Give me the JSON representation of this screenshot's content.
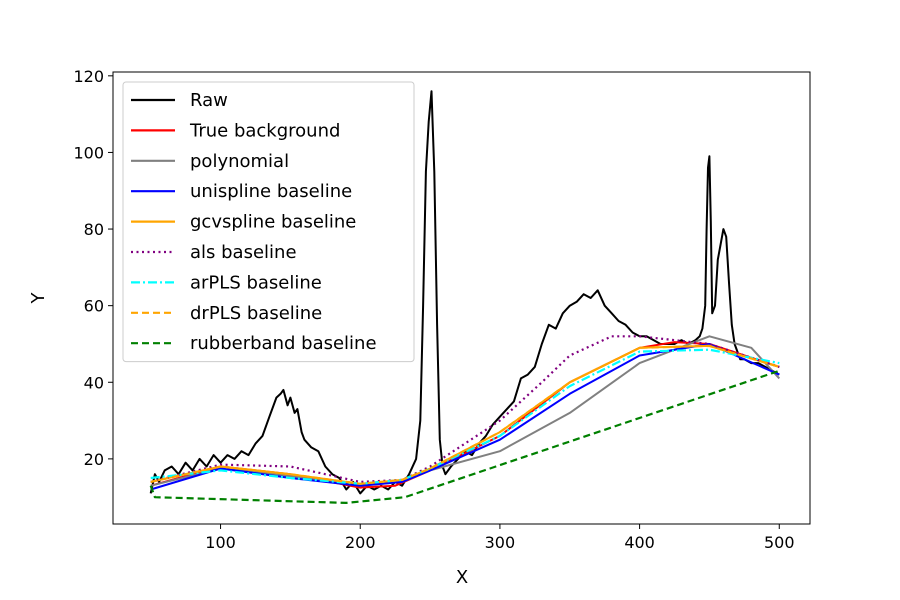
{
  "chart_data": {
    "type": "line",
    "xlabel": "X",
    "ylabel": "Y",
    "xlim": [
      23,
      522
    ],
    "ylim": [
      3,
      121
    ],
    "xticks": [
      100,
      200,
      300,
      400,
      500
    ],
    "yticks": [
      20,
      40,
      60,
      80,
      100,
      120
    ],
    "legend_position": "top-left",
    "series": [
      {
        "name": "Raw",
        "color": "#000000",
        "dash": "solid",
        "x": [
          50,
          53,
          56,
          60,
          65,
          70,
          75,
          80,
          85,
          90,
          95,
          100,
          105,
          110,
          115,
          120,
          125,
          130,
          135,
          140,
          143,
          145,
          148,
          150,
          153,
          155,
          158,
          160,
          165,
          170,
          175,
          180,
          185,
          190,
          195,
          200,
          205,
          210,
          215,
          220,
          225,
          230,
          235,
          240,
          243,
          245,
          247,
          249,
          250,
          251,
          253,
          255,
          257,
          259,
          261,
          265,
          270,
          275,
          280,
          285,
          290,
          295,
          300,
          305,
          310,
          315,
          320,
          325,
          330,
          335,
          340,
          345,
          350,
          355,
          360,
          365,
          370,
          375,
          380,
          385,
          390,
          395,
          400,
          405,
          410,
          415,
          420,
          425,
          430,
          435,
          440,
          443,
          445,
          447,
          448,
          449,
          450,
          451,
          452,
          454,
          456,
          458,
          460,
          462,
          464,
          466,
          468,
          470,
          472,
          475,
          480,
          485,
          490,
          495,
          500
        ],
        "y": [
          11,
          16,
          14,
          17,
          18,
          16,
          19,
          17,
          20,
          18,
          21,
          19,
          21,
          20,
          22,
          21,
          24,
          26,
          31,
          36,
          37,
          38,
          34,
          36,
          32,
          33,
          27,
          25,
          23,
          22,
          18,
          16,
          15,
          12,
          14,
          11,
          13,
          12,
          13,
          12,
          14,
          13,
          16,
          20,
          30,
          60,
          95,
          108,
          112,
          116,
          95,
          55,
          25,
          18,
          16,
          18,
          20,
          22,
          21,
          24,
          26,
          29,
          31,
          33,
          35,
          41,
          42,
          44,
          50,
          55,
          54,
          58,
          60,
          61,
          63,
          62,
          64,
          60,
          58,
          56,
          55,
          53,
          52,
          52,
          51,
          50,
          50,
          50,
          51,
          50,
          51,
          52,
          54,
          60,
          80,
          96,
          99,
          82,
          58,
          60,
          72,
          76,
          80,
          78,
          66,
          55,
          50,
          48,
          46,
          46,
          45,
          45,
          44,
          43,
          42
        ]
      },
      {
        "name": "True background",
        "color": "#ff0000",
        "dash": "solid",
        "x": [
          50,
          100,
          150,
          200,
          225,
          250,
          300,
          350,
          400,
          425,
          450,
          500
        ],
        "y": [
          13,
          18,
          16,
          12.5,
          13,
          17,
          26,
          40,
          49,
          50.5,
          50,
          44
        ]
      },
      {
        "name": "polynomial",
        "color": "#808080",
        "dash": "solid",
        "x": [
          50,
          100,
          150,
          200,
          230,
          250,
          300,
          350,
          400,
          450,
          480,
          500
        ],
        "y": [
          13,
          17.5,
          15.5,
          13,
          14,
          17,
          22,
          32,
          45,
          52,
          49,
          41
        ]
      },
      {
        "name": "unispline baseline",
        "color": "#0000ff",
        "dash": "solid",
        "x": [
          50,
          100,
          150,
          200,
          230,
          250,
          300,
          350,
          400,
          450,
          500
        ],
        "y": [
          12,
          17.5,
          15,
          13,
          14,
          17,
          25,
          37,
          47,
          50,
          42
        ]
      },
      {
        "name": "gcvspline baseline",
        "color": "#ffa500",
        "dash": "solid",
        "x": [
          50,
          100,
          150,
          200,
          230,
          250,
          300,
          350,
          400,
          450,
          500
        ],
        "y": [
          14,
          18,
          16,
          13.5,
          14.5,
          17.5,
          27,
          40,
          49,
          49.5,
          44
        ]
      },
      {
        "name": "als baseline",
        "color": "#800080",
        "dash": "dotted",
        "x": [
          50,
          100,
          150,
          200,
          230,
          250,
          300,
          330,
          350,
          380,
          400,
          450,
          500
        ],
        "y": [
          14,
          18.5,
          18,
          14,
          14.5,
          18,
          30,
          40,
          47,
          52,
          52,
          50,
          44
        ]
      },
      {
        "name": "arPLS baseline",
        "color": "#00ffff",
        "dash": "dashdot",
        "x": [
          50,
          100,
          150,
          200,
          230,
          250,
          300,
          350,
          400,
          450,
          500
        ],
        "y": [
          15,
          17,
          15,
          13.5,
          14.5,
          17.5,
          26,
          39,
          48,
          48.5,
          45
        ]
      },
      {
        "name": "drPLS baseline",
        "color": "#ffa500",
        "dash": "dashed",
        "x": [
          50,
          100,
          150,
          200,
          230,
          250,
          300,
          350,
          400,
          450,
          500
        ],
        "y": [
          14,
          18,
          16,
          13.5,
          14.5,
          17.5,
          27,
          40,
          49,
          49.5,
          44
        ]
      },
      {
        "name": "rubberband baseline",
        "color": "#008000",
        "dash": "dashed",
        "x": [
          50,
          53,
          190,
          232,
          500
        ],
        "y": [
          13,
          10,
          8.5,
          10,
          43
        ]
      }
    ]
  }
}
